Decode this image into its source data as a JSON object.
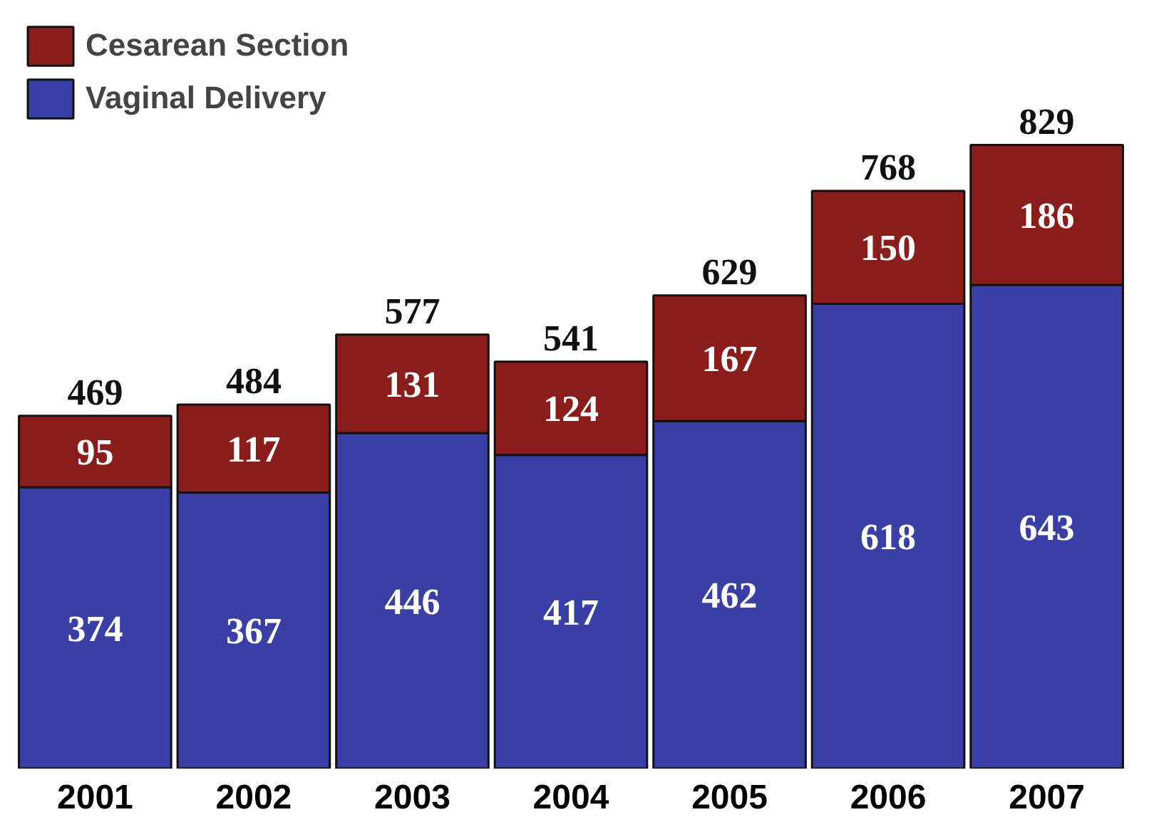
{
  "chart_data": {
    "type": "bar",
    "stacked": true,
    "categories": [
      "2001",
      "2002",
      "2003",
      "2004",
      "2005",
      "2006",
      "2007"
    ],
    "series": [
      {
        "name": "Vaginal Delivery",
        "color": "#3a3fa6",
        "values": [
          374,
          367,
          446,
          417,
          462,
          618,
          643
        ]
      },
      {
        "name": "Cesarean Section",
        "color": "#8b1c1c",
        "values": [
          95,
          117,
          131,
          124,
          167,
          150,
          186
        ]
      }
    ],
    "data_labels": true,
    "totals": [
      "469",
      "484",
      "577",
      "541",
      "629",
      "768",
      "829"
    ],
    "legend": "top left",
    "grid": false
  }
}
